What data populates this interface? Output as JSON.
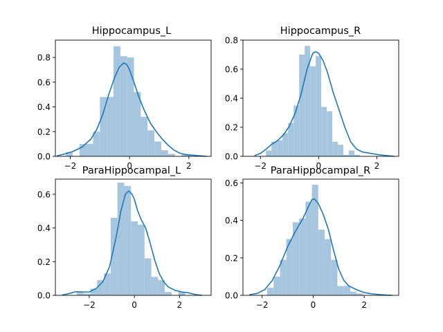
{
  "chart_data": [
    {
      "type": "histogram+kde",
      "title": "Hippocampus_L",
      "xlim": [
        -2.5,
        2.75
      ],
      "ylim": [
        0,
        0.94
      ],
      "xticks": [
        -2,
        0,
        2
      ],
      "yticks": [
        0.0,
        0.2,
        0.4,
        0.6,
        0.8
      ],
      "bins": {
        "edges": [
          -2.15,
          -1.92,
          -1.69,
          -1.46,
          -1.23,
          -1.0,
          -0.77,
          -0.54,
          -0.31,
          -0.08,
          0.15,
          0.38,
          0.61,
          0.84,
          1.07,
          1.3,
          1.53,
          1.76,
          1.99,
          2.22
        ],
        "heights": [
          0.035,
          0.0,
          0.1,
          0.1,
          0.2,
          0.48,
          0.48,
          0.89,
          0.81,
          0.8,
          0.52,
          0.32,
          0.21,
          0.12,
          0.05,
          0.02,
          0.0,
          0.02,
          0.01
        ]
      },
      "kde": {
        "x": [
          -2.45,
          -2.2,
          -1.9,
          -1.6,
          -1.3,
          -1.1,
          -0.9,
          -0.7,
          -0.5,
          -0.35,
          -0.2,
          -0.1,
          0.0,
          0.15,
          0.3,
          0.5,
          0.7,
          0.9,
          1.1,
          1.3,
          1.5,
          1.7,
          1.9,
          2.1,
          2.3,
          2.6
        ],
        "y": [
          0.003,
          0.018,
          0.04,
          0.075,
          0.14,
          0.22,
          0.34,
          0.5,
          0.64,
          0.72,
          0.755,
          0.745,
          0.7,
          0.6,
          0.49,
          0.37,
          0.27,
          0.2,
          0.14,
          0.09,
          0.05,
          0.025,
          0.014,
          0.01,
          0.006,
          0.0
        ]
      }
    },
    {
      "type": "histogram+kde",
      "title": "Hippocampus_R",
      "xlim": [
        -2.6,
        2.75
      ],
      "ylim": [
        0,
        0.8
      ],
      "xticks": [
        -2,
        0,
        2
      ],
      "yticks": [
        0.0,
        0.2,
        0.4,
        0.6,
        0.8
      ],
      "bins": {
        "edges": [
          -2.0,
          -1.81,
          -1.62,
          -1.43,
          -1.24,
          -1.05,
          -0.86,
          -0.67,
          -0.48,
          -0.29,
          -0.1,
          0.09,
          0.28,
          0.47,
          0.66,
          0.85,
          1.04,
          1.23,
          1.42,
          1.61,
          1.8
        ],
        "heights": [
          0.0,
          0.04,
          0.1,
          0.11,
          0.16,
          0.23,
          0.35,
          0.7,
          0.76,
          0.62,
          0.69,
          0.34,
          0.31,
          0.1,
          0.08,
          0.01,
          0.04,
          0.01,
          0.0,
          0.0
        ]
      },
      "kde": {
        "x": [
          -2.2,
          -2.0,
          -1.8,
          -1.6,
          -1.4,
          -1.2,
          -1.0,
          -0.8,
          -0.6,
          -0.4,
          -0.2,
          -0.1,
          0.0,
          0.15,
          0.3,
          0.5,
          0.7,
          0.9,
          1.1,
          1.3,
          1.5,
          1.8,
          2.1,
          2.4,
          2.6
        ],
        "y": [
          0.005,
          0.02,
          0.05,
          0.085,
          0.11,
          0.15,
          0.21,
          0.3,
          0.43,
          0.6,
          0.71,
          0.72,
          0.71,
          0.66,
          0.58,
          0.44,
          0.32,
          0.2,
          0.1,
          0.05,
          0.03,
          0.02,
          0.01,
          0.004,
          0.0
        ]
      }
    },
    {
      "type": "histogram+kde",
      "title": "ParaHippocampal_L",
      "xlim": [
        -3.5,
        3.4
      ],
      "ylim": [
        0,
        0.69
      ],
      "xticks": [
        -2,
        0,
        2
      ],
      "yticks": [
        0.0,
        0.2,
        0.4,
        0.6
      ],
      "bins": {
        "edges": [
          -2.55,
          -2.25,
          -1.95,
          -1.65,
          -1.35,
          -1.05,
          -0.75,
          -0.45,
          -0.15,
          0.15,
          0.45,
          0.75,
          1.05,
          1.35,
          1.65,
          1.95,
          2.25,
          2.55
        ],
        "heights": [
          0.02,
          0.01,
          0.04,
          0.09,
          0.13,
          0.46,
          0.67,
          0.65,
          0.44,
          0.42,
          0.22,
          0.11,
          0.09,
          0.02,
          0.0,
          0.02,
          0.0
        ]
      },
      "kde": {
        "x": [
          -3.2,
          -2.9,
          -2.6,
          -2.3,
          -2.0,
          -1.7,
          -1.4,
          -1.1,
          -0.8,
          -0.6,
          -0.4,
          -0.25,
          -0.1,
          0.0,
          0.15,
          0.3,
          0.5,
          0.7,
          0.9,
          1.1,
          1.3,
          1.5,
          1.8,
          2.1,
          2.4,
          2.7,
          3.0
        ],
        "y": [
          0.002,
          0.01,
          0.022,
          0.02,
          0.02,
          0.04,
          0.08,
          0.17,
          0.35,
          0.5,
          0.6,
          0.62,
          0.6,
          0.57,
          0.5,
          0.45,
          0.4,
          0.31,
          0.21,
          0.13,
          0.08,
          0.05,
          0.03,
          0.02,
          0.015,
          0.005,
          0.0
        ]
      }
    },
    {
      "type": "histogram+kde",
      "title": "ParaHippocampal_R",
      "xlim": [
        -2.75,
        3.35
      ],
      "ylim": [
        0,
        0.62
      ],
      "xticks": [
        -2,
        0,
        2
      ],
      "yticks": [
        0.0,
        0.2,
        0.4,
        0.6
      ],
      "bins": {
        "edges": [
          -1.8,
          -1.55,
          -1.3,
          -1.05,
          -0.8,
          -0.55,
          -0.3,
          -0.05,
          0.2,
          0.45,
          0.7,
          0.95,
          1.2,
          1.45,
          1.7,
          1.95
        ],
        "heights": [
          0.04,
          0.1,
          0.19,
          0.3,
          0.39,
          0.41,
          0.5,
          0.59,
          0.35,
          0.3,
          0.19,
          0.05,
          0.05,
          0.02,
          0.01
        ]
      },
      "kde": {
        "x": [
          -2.5,
          -2.2,
          -1.9,
          -1.6,
          -1.3,
          -1.0,
          -0.7,
          -0.4,
          -0.2,
          -0.05,
          0.05,
          0.2,
          0.4,
          0.6,
          0.8,
          1.0,
          1.2,
          1.4,
          1.7,
          2.0,
          2.3,
          2.6,
          2.9,
          3.1
        ],
        "y": [
          0.003,
          0.01,
          0.03,
          0.08,
          0.16,
          0.26,
          0.34,
          0.41,
          0.47,
          0.51,
          0.515,
          0.49,
          0.43,
          0.35,
          0.24,
          0.14,
          0.08,
          0.05,
          0.03,
          0.015,
          0.008,
          0.004,
          0.001,
          0.0
        ]
      }
    }
  ]
}
